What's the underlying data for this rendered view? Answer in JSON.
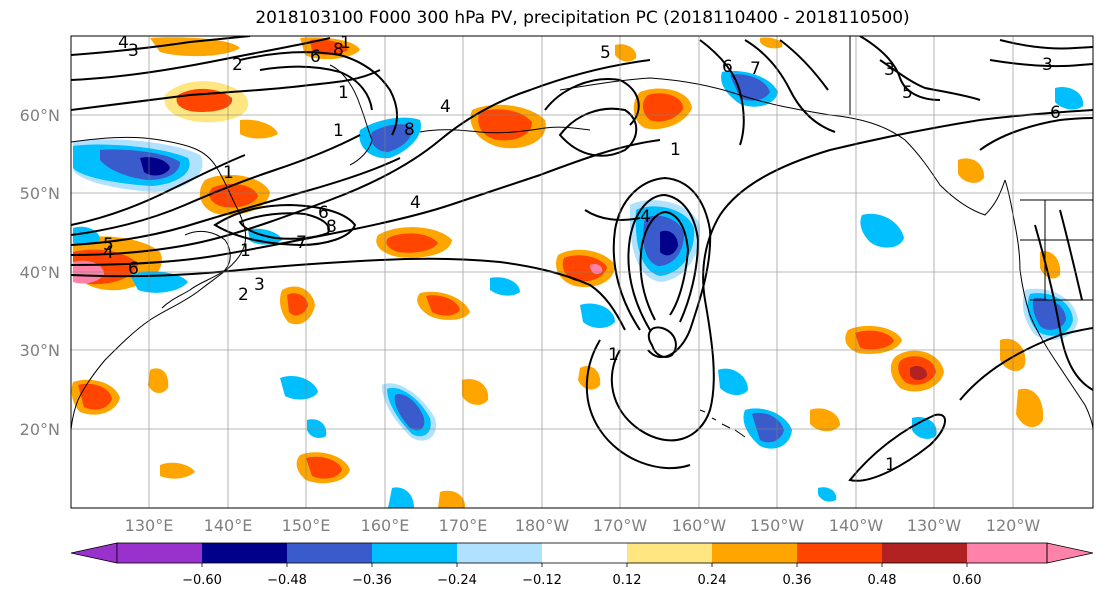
{
  "title": "2018103100 F000 300 hPa PV, precipitation PC (2018110400 - 2018110500)",
  "map": {
    "lon_ticks": [
      "130°E",
      "140°E",
      "150°E",
      "160°E",
      "170°E",
      "180°W",
      "170°W",
      "160°W",
      "150°W",
      "140°W",
      "130°W",
      "120°W"
    ],
    "lat_ticks": [
      "60°N",
      "50°N",
      "40°N",
      "30°N",
      "20°N"
    ],
    "contour_labels": [
      "4",
      "3",
      "2",
      "1",
      "6",
      "8",
      "1",
      "1",
      "4",
      "6",
      "8",
      "1",
      "2",
      "3",
      "4",
      "5",
      "6",
      "7",
      "8",
      "3",
      "5",
      "1",
      "7",
      "6",
      "5",
      "4",
      "3",
      "6",
      "4",
      "1",
      "1",
      "1"
    ],
    "colors": {
      "land_outline": "#000000",
      "grid": "#808080",
      "contour": "#000000"
    }
  },
  "colorbar": {
    "levels": [
      "−0.60",
      "−0.48",
      "−0.36",
      "−0.24",
      "−0.12",
      "0.12",
      "0.24",
      "0.36",
      "0.48",
      "0.60"
    ],
    "colors": [
      "#9932cc",
      "#00008b",
      "#3a5bcc",
      "#00bfff",
      "#b0e2ff",
      "#ffffff",
      "#ffe680",
      "#ffa500",
      "#ff4500",
      "#b22222",
      "#ff82ab"
    ]
  }
}
